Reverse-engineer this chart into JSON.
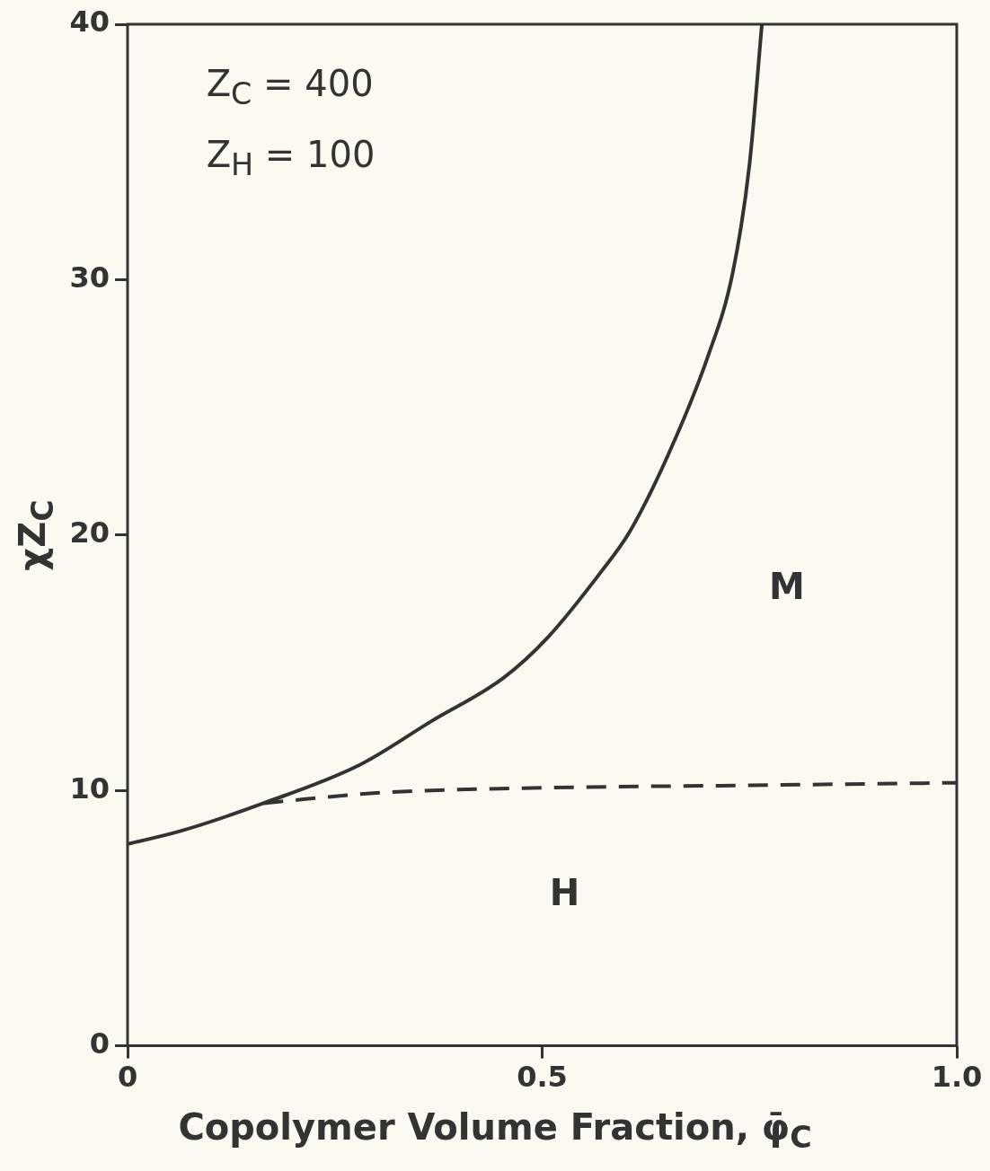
{
  "chart_data": {
    "type": "line",
    "xlabel": "Copolymer Volume Fraction, φ̄$_{C}$",
    "ylabel": "χZ$_{C}$",
    "xlim": [
      0,
      1
    ],
    "ylim": [
      0,
      40
    ],
    "xticks": [
      0,
      0.5,
      {
        "value": 1,
        "label": "1.0"
      }
    ],
    "yticks": [
      0,
      10,
      20,
      30,
      40
    ],
    "grid": false,
    "legend": false,
    "marker": "none",
    "series": [
      {
        "color": "#333333",
        "line_style": "solid",
        "x": [
          0,
          0.063,
          0.164,
          0.28,
          0.366,
          0.453,
          0.507,
          0.572,
          0.605,
          0.65,
          0.7,
          0.73,
          0.75,
          0.765
        ],
        "values": [
          7.9,
          8.4,
          9.5,
          11.0,
          12.7,
          14.4,
          16.0,
          18.6,
          20.1,
          23.0,
          27.0,
          30.3,
          34.5,
          40
        ]
      },
      {
        "color": "#333333",
        "line_style": "dashed",
        "x": [
          0.164,
          0.3,
          0.5,
          0.75,
          1.0
        ],
        "values": [
          9.5,
          9.9,
          10.1,
          10.2,
          10.3
        ]
      }
    ],
    "annotations": [
      "Z$_{C}$ = 400",
      "Z$_{H}$ = 100",
      "M",
      "H"
    ]
  }
}
